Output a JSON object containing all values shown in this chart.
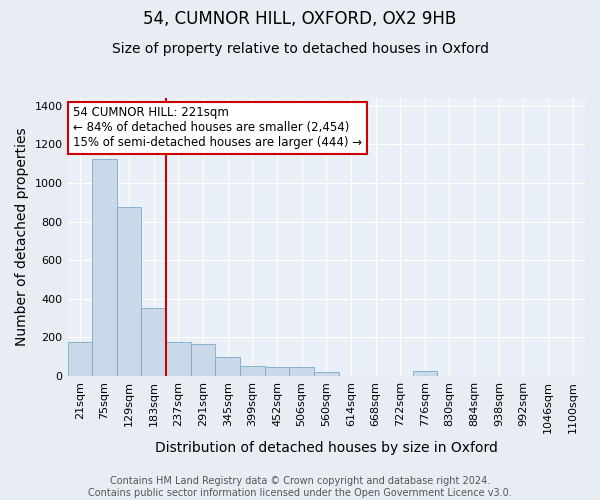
{
  "title": "54, CUMNOR HILL, OXFORD, OX2 9HB",
  "subtitle": "Size of property relative to detached houses in Oxford",
  "xlabel": "Distribution of detached houses by size in Oxford",
  "ylabel": "Number of detached properties",
  "bar_labels": [
    "21sqm",
    "75sqm",
    "129sqm",
    "183sqm",
    "237sqm",
    "291sqm",
    "345sqm",
    "399sqm",
    "452sqm",
    "506sqm",
    "560sqm",
    "614sqm",
    "668sqm",
    "722sqm",
    "776sqm",
    "830sqm",
    "884sqm",
    "938sqm",
    "992sqm",
    "1046sqm",
    "1100sqm"
  ],
  "bar_values": [
    175,
    1125,
    875,
    350,
    175,
    165,
    100,
    50,
    45,
    45,
    20,
    0,
    0,
    0,
    25,
    0,
    0,
    0,
    0,
    0,
    0
  ],
  "bar_color": "#c9d9ea",
  "bar_edge_color": "#7aaac8",
  "vline_index": 3.5,
  "vline_color": "#cc0000",
  "annotation_text": "54 CUMNOR HILL: 221sqm\n← 84% of detached houses are smaller (2,454)\n15% of semi-detached houses are larger (444) →",
  "annotation_box_facecolor": "#ffffff",
  "annotation_box_edgecolor": "#cc0000",
  "ylim": [
    0,
    1440
  ],
  "yticks": [
    0,
    200,
    400,
    600,
    800,
    1000,
    1200,
    1400
  ],
  "bg_color": "#e8edf3",
  "plot_bg_color": "#eaf0f7",
  "footer_text": "Contains HM Land Registry data © Crown copyright and database right 2024.\nContains public sector information licensed under the Open Government Licence v3.0.",
  "title_fontsize": 12,
  "subtitle_fontsize": 10,
  "axis_label_fontsize": 10,
  "tick_fontsize": 8,
  "annotation_fontsize": 8.5,
  "footer_fontsize": 7
}
